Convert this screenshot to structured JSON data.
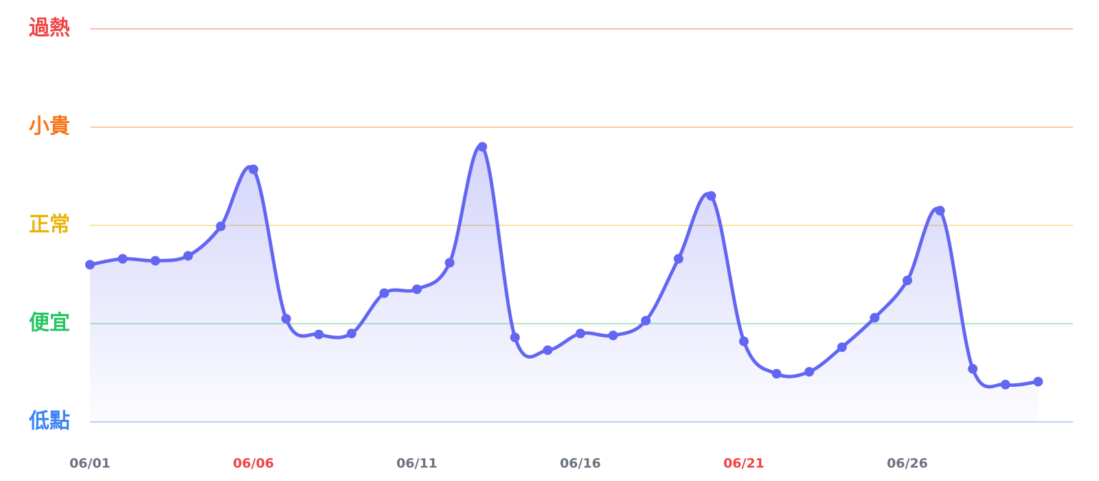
{
  "chart_data": {
    "type": "line",
    "categories": [
      "06/01",
      null,
      null,
      null,
      null,
      "06/06",
      null,
      null,
      null,
      null,
      "06/11",
      null,
      null,
      null,
      null,
      "06/16",
      null,
      null,
      null,
      null,
      "06/21",
      null,
      null,
      null,
      null,
      "06/26",
      null,
      null,
      null,
      null
    ],
    "category_colors": [
      "#6b7280",
      null,
      null,
      null,
      null,
      "#ef4444",
      null,
      null,
      null,
      null,
      "#6b7280",
      null,
      null,
      null,
      null,
      "#6b7280",
      null,
      null,
      null,
      null,
      "#ef4444",
      null,
      null,
      null,
      null,
      "#6b7280",
      null,
      null,
      null,
      null
    ],
    "series": [
      {
        "color": "#6366f1",
        "values": [
          1.6,
          1.66,
          1.64,
          1.69,
          1.99,
          2.57,
          1.05,
          0.89,
          0.9,
          1.31,
          1.35,
          1.62,
          2.8,
          0.86,
          0.73,
          0.9,
          0.88,
          1.03,
          1.66,
          2.3,
          0.82,
          0.49,
          0.51,
          0.76,
          1.06,
          1.44,
          2.15,
          0.54,
          0.38,
          0.41
        ]
      }
    ],
    "ylim": [
      0,
      4
    ],
    "yticks": [
      {
        "value": 0,
        "label": "低點"
      },
      {
        "value": 1,
        "label": "便宜"
      },
      {
        "value": 2,
        "label": "正常"
      },
      {
        "value": 3,
        "label": "小貴"
      },
      {
        "value": 4,
        "label": "過熱"
      }
    ],
    "ytick_colors": [
      "#3b82f6",
      "#22c55e",
      "#eab308",
      "#f97316",
      "#ef4444"
    ],
    "grid": true
  }
}
